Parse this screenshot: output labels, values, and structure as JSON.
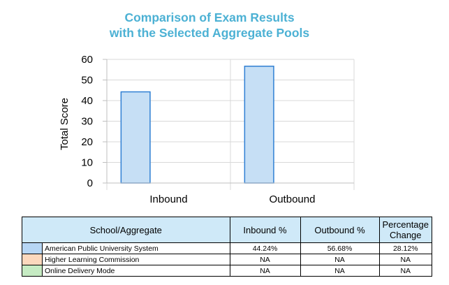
{
  "chart_data": {
    "type": "bar",
    "title_lines": [
      "Comparison of Exam Results",
      "with the Selected Aggregate Pools"
    ],
    "categories": [
      "Inbound",
      "Outbound"
    ],
    "series": [
      {
        "name": "American Public University System",
        "values": [
          44.24,
          56.68
        ]
      }
    ],
    "xlabel": "",
    "ylabel": "Total Score",
    "ylim": [
      0,
      60
    ],
    "yticks": [
      0,
      10,
      20,
      30,
      40,
      50,
      60
    ],
    "grid": true,
    "bar_fill": "#c6dff5",
    "bar_stroke": "#2f7fd3"
  },
  "table": {
    "headers": {
      "school": "School/Aggregate",
      "inbound": "Inbound %",
      "outbound": "Outbound %",
      "change_line1": "Percentage",
      "change_line2": "Change"
    },
    "rows": [
      {
        "color": "#b7d6f4",
        "name": "American Public University System",
        "inbound": "44.24%",
        "outbound": "56.68%",
        "change": "28.12%"
      },
      {
        "color": "#fcd8bd",
        "name": "Higher Learning Commission",
        "inbound": "NA",
        "outbound": "NA",
        "change": "NA"
      },
      {
        "color": "#c6ebc3",
        "name": "Online Delivery Mode",
        "inbound": "NA",
        "outbound": "NA",
        "change": "NA"
      }
    ]
  }
}
